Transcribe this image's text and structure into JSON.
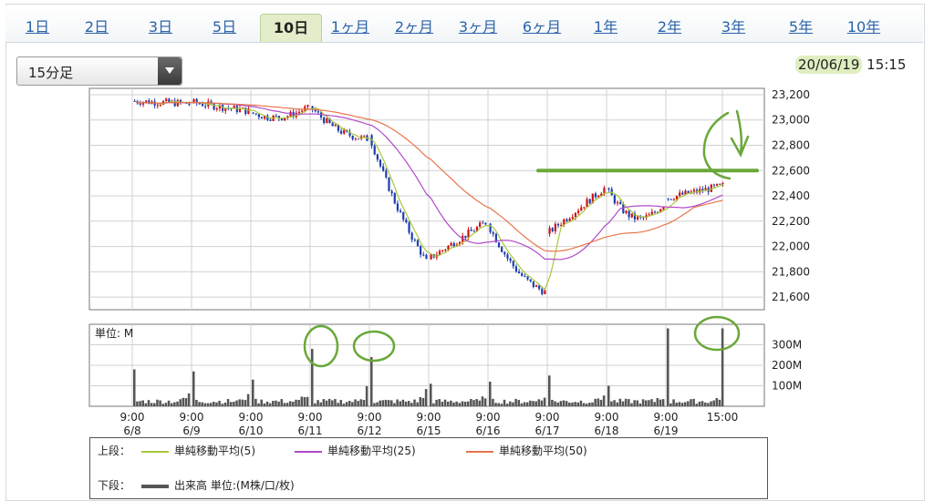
{
  "tabs": [
    {
      "label": "1日",
      "active": false
    },
    {
      "label": "2日",
      "active": false
    },
    {
      "label": "3日",
      "active": false
    },
    {
      "label": "5日",
      "active": false
    },
    {
      "label": "10日",
      "active": true
    },
    {
      "label": "1ヶ月",
      "active": false
    },
    {
      "label": "2ヶ月",
      "active": false
    },
    {
      "label": "3ヶ月",
      "active": false
    },
    {
      "label": "6ヶ月",
      "active": false
    },
    {
      "label": "1年",
      "active": false
    },
    {
      "label": "2年",
      "active": false
    },
    {
      "label": "3年",
      "active": false
    },
    {
      "label": "5年",
      "active": false
    },
    {
      "label": "10年",
      "active": false
    }
  ],
  "interval_select": {
    "value": "15分足"
  },
  "timestamp": {
    "date": "20/06/19",
    "time": "15:15"
  },
  "colors": {
    "candle_up": "#cc1111",
    "candle_down": "#1f3fae",
    "ma5": "#a8c83a",
    "ma25": "#b04ac8",
    "ma50": "#e8754a",
    "volume": "#555555",
    "annotation": "#6aa83a",
    "tab_link": "#2a62a8",
    "tab_active_bg": "#e3edc9"
  },
  "chart_data": {
    "type": "candlestick",
    "price_axis": {
      "ticks": [
        "23,200",
        "23,000",
        "22,800",
        "22,600",
        "22,400",
        "22,200",
        "22,000",
        "21,800",
        "21,600"
      ],
      "tick_values": [
        23200,
        23000,
        22800,
        22600,
        22400,
        22200,
        22000,
        21800,
        21600
      ]
    },
    "volume_axis": {
      "unit_label": "単位: M",
      "ticks": [
        "300M",
        "200M",
        "100M"
      ],
      "tick_values": [
        300,
        200,
        100
      ]
    },
    "x_labels": [
      {
        "time": "9:00",
        "date": "6/8"
      },
      {
        "time": "9:00",
        "date": "6/9"
      },
      {
        "time": "9:00",
        "date": "6/10"
      },
      {
        "time": "9:00",
        "date": "6/11"
      },
      {
        "time": "9:00",
        "date": "6/12"
      },
      {
        "time": "9:00",
        "date": "6/15"
      },
      {
        "time": "9:00",
        "date": "6/16"
      },
      {
        "time": "9:00",
        "date": "6/17"
      },
      {
        "time": "9:00",
        "date": "6/18"
      },
      {
        "time": "9:00",
        "date": "6/19"
      },
      {
        "time": "15:00",
        "date": ""
      }
    ],
    "days": [
      {
        "date": "6/8",
        "open": 23150,
        "high": 23180,
        "low": 23080,
        "close": 23130
      },
      {
        "date": "6/9",
        "open": 23140,
        "high": 23180,
        "low": 23030,
        "close": 23070
      },
      {
        "date": "6/10",
        "open": 23060,
        "high": 23120,
        "low": 22990,
        "close": 23100
      },
      {
        "date": "6/11",
        "open": 23110,
        "high": 23170,
        "low": 22780,
        "close": 22850
      },
      {
        "date": "6/12",
        "open": 22880,
        "high": 22890,
        "low": 21790,
        "close": 21880
      },
      {
        "date": "6/15",
        "open": 21900,
        "high": 22330,
        "low": 21880,
        "close": 22190
      },
      {
        "date": "6/16",
        "open": 22180,
        "high": 22220,
        "low": 21530,
        "close": 21640
      },
      {
        "date": "6/17",
        "open": 22100,
        "high": 22610,
        "low": 22060,
        "close": 22460
      },
      {
        "date": "6/18",
        "open": 22460,
        "high": 22510,
        "low": 22130,
        "close": 22330
      },
      {
        "date": "6/19",
        "open": 22380,
        "high": 22510,
        "low": 22340,
        "close": 22480
      }
    ],
    "moving_averages": [
      {
        "name": "単純移動平均(5)",
        "key": "ma5"
      },
      {
        "name": "単純移動平均(25)",
        "key": "ma25"
      },
      {
        "name": "単純移動平均(50)",
        "key": "ma50"
      }
    ],
    "volume_days": [
      {
        "date": "6/8",
        "peak": 180
      },
      {
        "date": "6/9",
        "peak": 170
      },
      {
        "date": "6/10",
        "peak": 130
      },
      {
        "date": "6/11",
        "peak": 280
      },
      {
        "date": "6/12",
        "peak": 240
      },
      {
        "date": "6/15",
        "peak": 110
      },
      {
        "date": "6/16",
        "peak": 120
      },
      {
        "date": "6/17",
        "peak": 150
      },
      {
        "date": "6/18",
        "peak": 100
      },
      {
        "date": "6/19",
        "peak": 380
      }
    ],
    "resistance_level": 22600
  },
  "legend": {
    "upper_label": "上段：",
    "lower_label": "下段：",
    "volume_label": "出来高 単位:(M株/口/枚)"
  }
}
